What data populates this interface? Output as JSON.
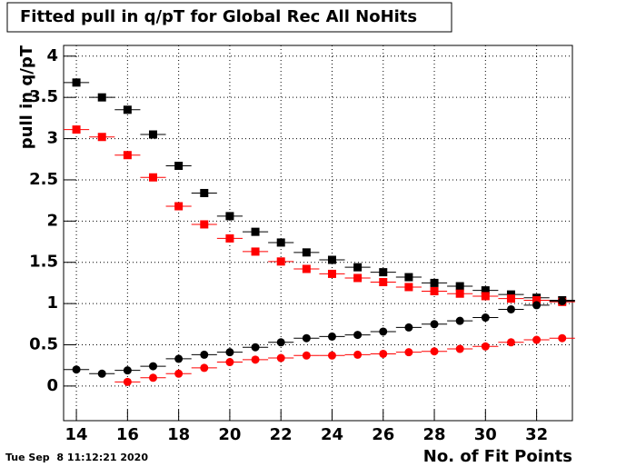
{
  "chart_data": {
    "type": "scatter",
    "title": "Fitted pull in q/pT for Global Rec All NoHits",
    "x_label": "No. of Fit Points",
    "y_label": "pull in q/pT",
    "timestamp": "Tue Sep  8 11:12:21 2020",
    "x": [
      14,
      15,
      16,
      17,
      18,
      19,
      20,
      21,
      22,
      23,
      24,
      25,
      26,
      27,
      28,
      29,
      30,
      31,
      32,
      33
    ],
    "series": [
      {
        "color": "#000000",
        "marker": "square",
        "values": [
          3.68,
          3.5,
          3.35,
          3.05,
          2.67,
          2.34,
          2.06,
          1.87,
          1.74,
          1.62,
          1.53,
          1.44,
          1.38,
          1.32,
          1.25,
          1.21,
          1.16,
          1.11,
          1.07,
          1.04
        ]
      },
      {
        "color": "#ff0000",
        "marker": "square",
        "values": [
          3.11,
          3.02,
          2.8,
          2.53,
          2.18,
          1.96,
          1.79,
          1.63,
          1.51,
          1.42,
          1.36,
          1.31,
          1.26,
          1.2,
          1.15,
          1.12,
          1.09,
          1.06,
          1.04,
          1.02
        ]
      },
      {
        "color": "#000000",
        "marker": "circle",
        "values": [
          0.2,
          0.15,
          0.19,
          0.24,
          0.33,
          0.38,
          0.41,
          0.47,
          0.53,
          0.58,
          0.6,
          0.62,
          0.66,
          0.71,
          0.75,
          0.79,
          0.83,
          0.93,
          0.98,
          1.03
        ]
      },
      {
        "color": "#ff0000",
        "marker": "circle",
        "values": [
          null,
          null,
          0.05,
          0.1,
          0.15,
          0.22,
          0.29,
          0.32,
          0.34,
          0.37,
          0.37,
          0.38,
          0.39,
          0.41,
          0.42,
          0.45,
          0.48,
          0.53,
          0.56,
          0.58
        ]
      }
    ],
    "xlim": [
      13.5,
      33.4
    ],
    "ylim": [
      -0.42,
      4.13
    ],
    "xticks": [
      14,
      16,
      18,
      20,
      22,
      24,
      26,
      28,
      30,
      32
    ],
    "yticks": [
      0,
      0.5,
      1,
      1.5,
      2,
      2.5,
      3,
      3.5,
      4
    ],
    "grid": true
  }
}
